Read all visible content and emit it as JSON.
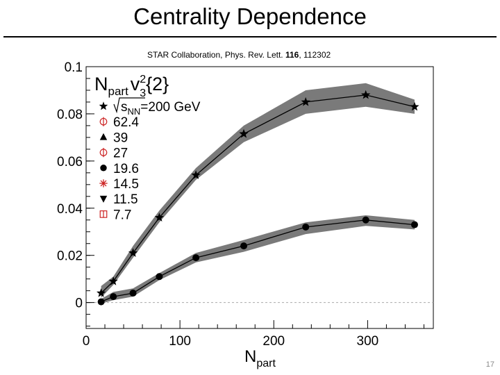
{
  "slide": {
    "title": "Centrality Dependence",
    "citation_prefix": "STAR Collaboration, Phys. Rev. Lett. ",
    "citation_volume": "116",
    "citation_suffix": ", 112302",
    "page_number": "17"
  },
  "chart_data": {
    "type": "line",
    "xlabel_main": "N",
    "xlabel_sub": "part",
    "xlim": [
      0,
      370
    ],
    "ylim": [
      -0.011,
      0.1
    ],
    "xticks": [
      "0",
      "100",
      "200",
      "300"
    ],
    "yticks": [
      "0",
      "0.02",
      "0.04",
      "0.06",
      "0.08",
      "0.1"
    ],
    "reference_line_y": 0,
    "plot_label": {
      "main": "N",
      "sub": "part",
      "v": "v",
      "sup": "2",
      "sub2": "3",
      "suffix": "{2}"
    },
    "legend": {
      "header_prefix": "s",
      "header_sub": "NN",
      "header_suffix": "=200 GeV",
      "entries": [
        {
          "label": "",
          "marker": "star",
          "color": "#000000"
        },
        {
          "label": "62.4",
          "marker": "open-circle-cross",
          "color": "#cc2222"
        },
        {
          "label": "39",
          "marker": "triangle",
          "color": "#000000"
        },
        {
          "label": "27",
          "marker": "open-circle-cross",
          "color": "#cc2222"
        },
        {
          "label": "19.6",
          "marker": "circle",
          "color": "#000000"
        },
        {
          "label": "14.5",
          "marker": "asterisk",
          "color": "#cc2222"
        },
        {
          "label": "11.5",
          "marker": "triangle-down",
          "color": "#000000"
        },
        {
          "label": "7.7",
          "marker": "open-square-cross",
          "color": "#cc2222"
        }
      ]
    },
    "band_color": "#7a7a7a",
    "series": [
      {
        "marker": "star",
        "x": [
          16,
          29,
          50,
          78,
          117,
          168,
          234,
          298,
          350
        ],
        "y": [
          0.004,
          0.009,
          0.021,
          0.036,
          0.054,
          0.0715,
          0.085,
          0.088,
          0.083
        ],
        "band_low": [
          0.002,
          0.0075,
          0.019,
          0.034,
          0.052,
          0.068,
          0.08,
          0.083,
          0.08
        ],
        "band_high": [
          0.007,
          0.011,
          0.024,
          0.039,
          0.057,
          0.075,
          0.09,
          0.093,
          0.086
        ]
      },
      {
        "marker": "circle",
        "x": [
          16,
          29,
          50,
          78,
          117,
          168,
          234,
          298,
          350
        ],
        "y": [
          0.0003,
          0.0025,
          0.004,
          0.011,
          0.019,
          0.024,
          0.032,
          0.035,
          0.033
        ],
        "band_low": [
          -0.0005,
          0.001,
          0.0025,
          0.0095,
          0.017,
          0.0215,
          0.029,
          0.0325,
          0.031
        ],
        "band_high": [
          0.0015,
          0.0045,
          0.006,
          0.0125,
          0.021,
          0.0265,
          0.034,
          0.037,
          0.035
        ]
      }
    ]
  }
}
